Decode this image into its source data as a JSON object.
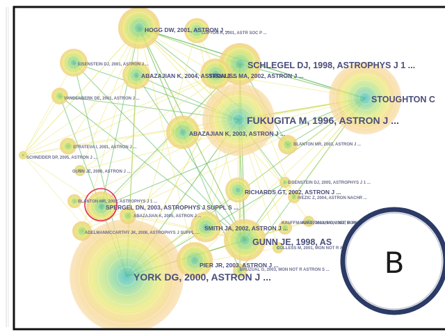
{
  "panel_letter": "B",
  "nodes": [
    {
      "id": "york",
      "label": "YORK DG, 2000, ASTRON J ...",
      "size": "xl"
    },
    {
      "id": "stoughton",
      "label": "STOUGHTON C",
      "size": "xl"
    },
    {
      "id": "fukugita",
      "label": "FUKUGITA M, 1996, ASTRON J ...",
      "size": "xl"
    },
    {
      "id": "schlegel",
      "label": "SCHLEGEL DJ, 1998, ASTROPHYS J 1 ...",
      "size": "l"
    },
    {
      "id": "gunn",
      "label": "GUNN JE, 1998, AS",
      "size": "l"
    },
    {
      "id": "hogg",
      "label": "HOGG DW, 2001, ASTRON J ...",
      "size": "m"
    },
    {
      "id": "lupton",
      "label": "LUPTON R, 2001, ASTR SOC P ...",
      "size": "s"
    },
    {
      "id": "abazajian2003",
      "label": "ABAZAJIAN K, 2003, ASTRON J ...",
      "size": "m"
    },
    {
      "id": "abazajian2004",
      "label": "ABAZAJIAN K, 2004, ASTRON J ...",
      "size": "m"
    },
    {
      "id": "strauss",
      "label": "STRAUSS MA, 2002, ASTRON J ...",
      "size": "m"
    },
    {
      "id": "smith",
      "label": "SMITH JA, 2002, ASTRON J ...",
      "size": "m"
    },
    {
      "id": "spergel",
      "label": "SPERGEL DN, 2003, ASTROPHYS J SUPPL S ...",
      "size": "m"
    },
    {
      "id": "richards",
      "label": "RICHARDS GT, 2002, ASTRON J ...",
      "size": "m"
    },
    {
      "id": "pier",
      "label": "PIER JR, 2003, ASTRON J ...",
      "size": "m"
    },
    {
      "id": "eisenstein2001",
      "label": "EISENSTEIN DJ, 2001, ASTRON J ...",
      "size": "s"
    },
    {
      "id": "adelman",
      "label": "ADELMANMCCARTHY JK, 2006, ASTROPHYS J SUPPL ...",
      "size": "m"
    },
    {
      "id": "abazajian2005",
      "label": "ABAZAJIAN K, 2005, ASTRON J ...",
      "size": "s"
    },
    {
      "id": "blanton2003",
      "label": "BLANTON MR, 2003, ASTRON J ...",
      "size": "s"
    },
    {
      "id": "blanton2003b",
      "label": "BLANTON MR, 2003, ASTROPHYS J 1 ...",
      "size": "s"
    },
    {
      "id": "stoughton_small",
      "label": "STRATEVA I, 2001, ASTRON J ...",
      "size": "s"
    },
    {
      "id": "vandenberk",
      "label": "VANDENBERK DE, 2001, ASTRON J ...",
      "size": "s"
    },
    {
      "id": "schneider",
      "label": "SCHNEIDER DP, 2005, ASTRON J ...",
      "size": "s"
    },
    {
      "id": "kauffmann",
      "label": "KAUFFMANN G, 2003, MON NOT R ASTRON S ...",
      "size": "s"
    },
    {
      "id": "bruzual",
      "label": "BRUZUAL G, 2003, MON NOT R ASTRON S ...",
      "size": "s"
    },
    {
      "id": "colless",
      "label": "COLLESS M, 2001, MON NOT R ASTRON S ...",
      "size": "s"
    },
    {
      "id": "ivezic",
      "label": "IVEZIC Z, 2004, ASTRON NACHR ...",
      "size": "s"
    },
    {
      "id": "eisenstein2005",
      "label": "EISENSTEIN DJ, 2005, ASTROPHYS J 1 ...",
      "size": "s"
    },
    {
      "id": "gunn2006",
      "label": "GUNN JE, 2006, ASTRON J ...",
      "size": "s"
    },
    {
      "id": "kauffmann2003b",
      "label": "KAUFFMANN G, 2003, MON NOT R ASTRON S",
      "size": "s"
    }
  ],
  "colors": {
    "ring_outer": "#f7c98a",
    "ring_mid": "#e8e070",
    "ring_inner": "#9fd67a",
    "core": "#5cc7b8",
    "edge_green": "#56b75a",
    "edge_yellow": "#e6e25c",
    "highlight_ring": "#e0305a",
    "badge_ring": "#2c3a66"
  }
}
